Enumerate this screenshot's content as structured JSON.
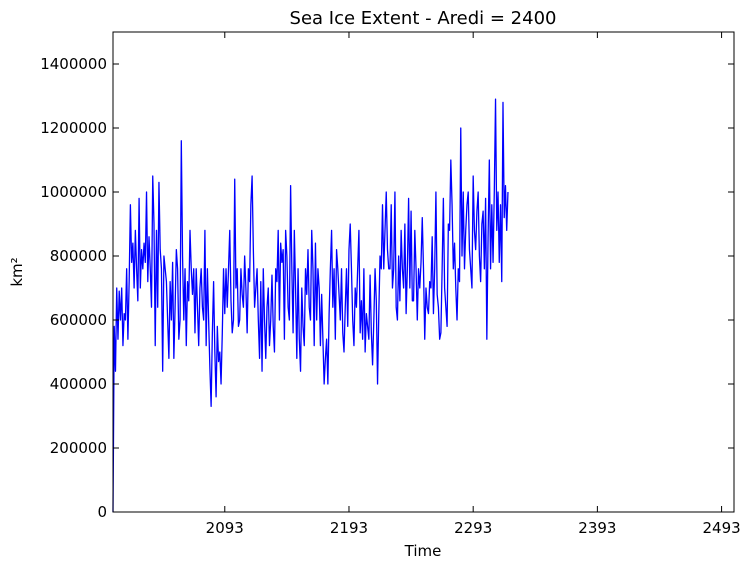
{
  "chart_data": {
    "type": "line",
    "title": "Sea Ice Extent - Aredi = 2400",
    "xlabel": "Time",
    "ylabel": "km²",
    "xlim": [
      2003,
      2503
    ],
    "ylim": [
      0,
      1500000
    ],
    "x_ticks": [
      2093,
      2193,
      2293,
      2393,
      2493
    ],
    "x_tick_labels": [
      "2093",
      "2193",
      "2293",
      "2393",
      "2493"
    ],
    "y_ticks": [
      0,
      200000,
      400000,
      600000,
      800000,
      1000000,
      1200000,
      1400000
    ],
    "y_tick_labels": [
      "0",
      "200000",
      "400000",
      "600000",
      "800000",
      "1000000",
      "1200000",
      "1400000"
    ],
    "grid": false,
    "line_color": "#0000ff",
    "series": [
      {
        "x_start": 2003,
        "x_step": 1,
        "values": [
          0,
          580000,
          440000,
          700000,
          540000,
          690000,
          600000,
          700000,
          520000,
          620000,
          600000,
          760000,
          540000,
          720000,
          960000,
          780000,
          840000,
          700000,
          880000,
          760000,
          660000,
          980000,
          700000,
          820000,
          760000,
          840000,
          780000,
          1000000,
          720000,
          860000,
          760000,
          640000,
          1050000,
          900000,
          520000,
          880000,
          640000,
          1030000,
          820000,
          760000,
          440000,
          800000,
          760000,
          720000,
          600000,
          480000,
          720000,
          600000,
          780000,
          480000,
          640000,
          820000,
          760000,
          540000,
          600000,
          1160000,
          800000,
          600000,
          760000,
          520000,
          720000,
          660000,
          880000,
          760000,
          680000,
          760000,
          560000,
          760000,
          640000,
          520000,
          700000,
          760000,
          640000,
          600000,
          880000,
          520000,
          760000,
          600000,
          450000,
          330000,
          560000,
          720000,
          500000,
          360000,
          580000,
          470000,
          500000,
          400000,
          560000,
          760000,
          620000,
          760000,
          640000,
          760000,
          880000,
          660000,
          560000,
          600000,
          1040000,
          700000,
          760000,
          580000,
          600000,
          760000,
          680000,
          640000,
          800000,
          700000,
          560000,
          760000,
          720000,
          960000,
          1050000,
          820000,
          640000,
          700000,
          760000,
          600000,
          480000,
          720000,
          440000,
          760000,
          600000,
          480000,
          640000,
          700000,
          520000,
          600000,
          740000,
          580000,
          500000,
          760000,
          720000,
          880000,
          600000,
          840000,
          780000,
          820000,
          540000,
          880000,
          800000,
          640000,
          600000,
          1020000,
          760000,
          560000,
          880000,
          700000,
          480000,
          760000,
          540000,
          440000,
          700000,
          580000,
          520000,
          760000,
          680000,
          820000,
          640000,
          600000,
          880000,
          760000,
          520000,
          840000,
          600000,
          760000,
          700000,
          520000,
          680000,
          540000,
          400000,
          480000,
          540000,
          400000,
          620000,
          760000,
          880000,
          640000,
          760000,
          540000,
          820000,
          760000,
          680000,
          600000,
          760000,
          560000,
          500000,
          640000,
          760000,
          580000,
          820000,
          900000,
          760000,
          600000,
          520000,
          700000,
          640000,
          760000,
          880000,
          560000,
          660000,
          540000,
          760000,
          500000,
          620000,
          580000,
          540000,
          740000,
          560000,
          460000,
          600000,
          760000,
          660000,
          400000,
          620000,
          800000,
          760000,
          960000,
          760000,
          880000,
          1000000,
          820000,
          760000,
          760000,
          960000,
          700000,
          760000,
          1000000,
          640000,
          600000,
          800000,
          660000,
          880000,
          760000,
          700000,
          900000,
          620000,
          760000,
          980000,
          700000,
          940000,
          660000,
          660000,
          880000,
          760000,
          600000,
          760000,
          700000,
          780000,
          920000,
          760000,
          540000,
          700000,
          640000,
          620000,
          720000,
          700000,
          860000,
          620000,
          760000,
          1000000,
          680000,
          640000,
          540000,
          560000,
          760000,
          980000,
          700000,
          640000,
          580000,
          900000,
          880000,
          1100000,
          960000,
          760000,
          840000,
          700000,
          600000,
          760000,
          720000,
          1200000,
          800000,
          1000000,
          760000,
          880000,
          960000,
          1000000,
          820000,
          760000,
          700000,
          1050000,
          880000,
          820000,
          940000,
          1000000,
          800000,
          720000,
          900000,
          940000,
          760000,
          980000,
          540000,
          860000,
          1100000,
          760000,
          960000,
          780000,
          1000000,
          1290000,
          880000,
          1000000,
          780000,
          960000,
          720000,
          1280000,
          920000,
          1020000,
          880000,
          1000000
        ]
      }
    ]
  }
}
